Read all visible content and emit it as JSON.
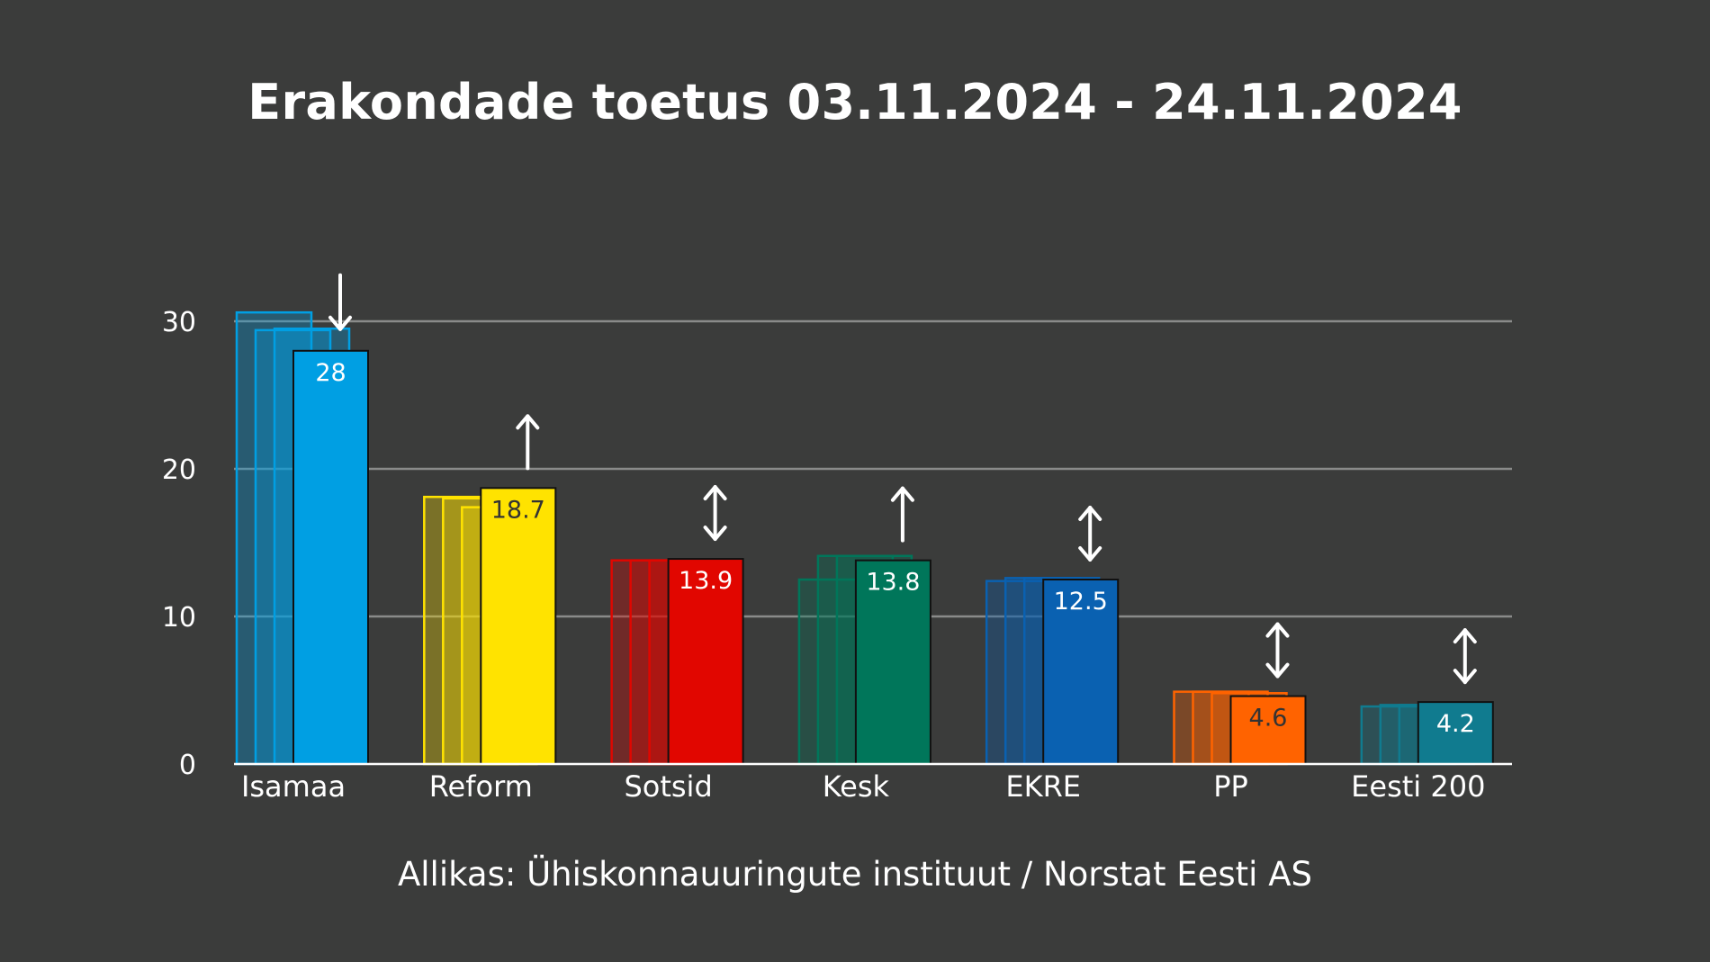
{
  "chart_data": {
    "type": "bar",
    "title": "Erakondade toetus 03.11.2024 - 24.11.2024",
    "source": "Allikas: Ühiskonnauuringute instituut / Norstat Eesti AS",
    "ylim": [
      0,
      30
    ],
    "yticks": [
      "0",
      "10",
      "20",
      "30"
    ],
    "grid": true,
    "categories": [
      "Isamaa",
      "Reform",
      "Sotsid",
      "Kesk",
      "EKRE",
      "PP",
      "Eesti 200"
    ],
    "values": [
      28,
      18.7,
      13.9,
      13.8,
      12.5,
      4.6,
      4.2
    ],
    "value_labels": [
      "28",
      "18.7",
      "13.9",
      "13.8",
      "12.5",
      "4.6",
      "4.2"
    ],
    "previous_weeks": [
      [
        30.6,
        29.4,
        29.5
      ],
      [
        18.1,
        18.0,
        17.4
      ],
      [
        13.8,
        13.8,
        13.8
      ],
      [
        12.5,
        14.1,
        14.1
      ],
      [
        12.4,
        12.6,
        12.6
      ],
      [
        4.9,
        4.9,
        4.8
      ],
      [
        3.9,
        4.0,
        4.0
      ]
    ],
    "trend": [
      "down",
      "up",
      "both",
      "up",
      "both",
      "both",
      "both"
    ],
    "colors": [
      "#009fe3",
      "#ffe300",
      "#e10600",
      "#00765a",
      "#0a61b1",
      "#ff6300",
      "#107b8f"
    ],
    "label_colors": [
      "#ffffff",
      "#333333",
      "#ffffff",
      "#ffffff",
      "#ffffff",
      "#333333",
      "#ffffff"
    ]
  }
}
